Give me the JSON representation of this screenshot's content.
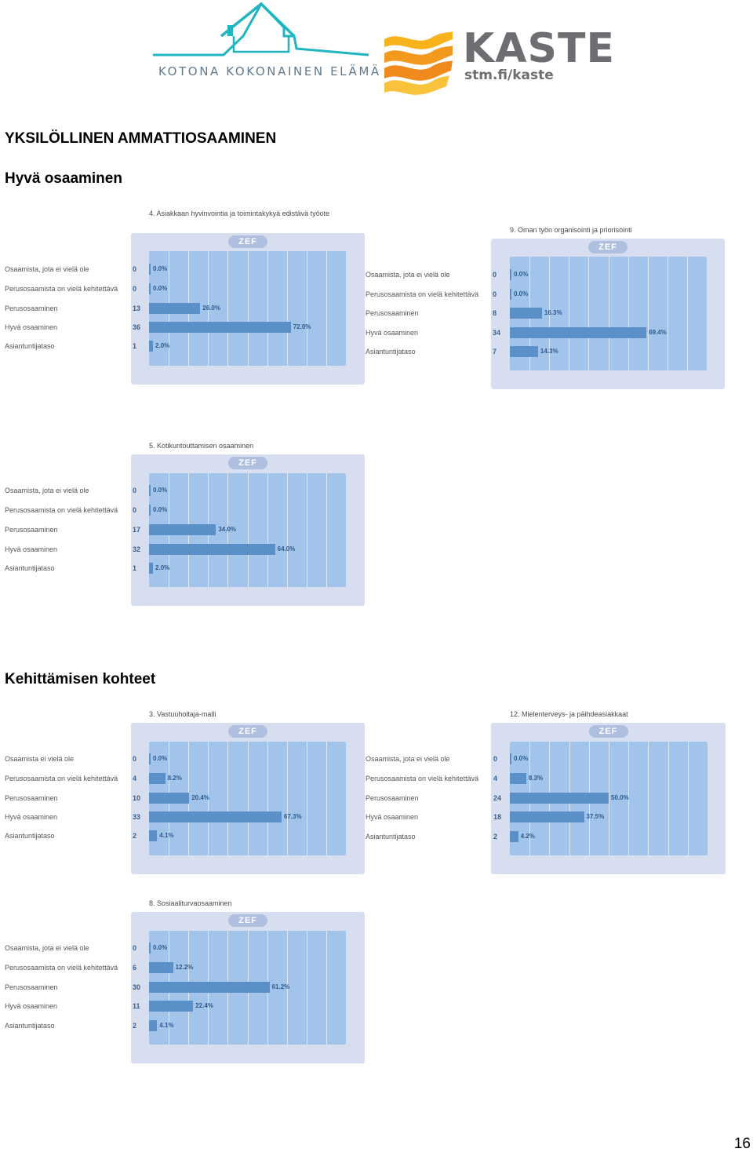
{
  "logos": {
    "kotona_tagline": "KOTONA KOKONAINEN ELÄMÄ",
    "kaste_word": "KASTE",
    "kaste_url": "stm.fi/kaste",
    "colors": {
      "house": "#1fb6c1",
      "kaste_wave": "#f5a623",
      "kaste_text": "#6d6e71"
    }
  },
  "heading_main": "YKSILÖLLINEN AMMATTIOSAAMINEN",
  "section_good": "Hyvä osaaminen",
  "section_dev": "Kehittämisen kohteet",
  "page_number": "16",
  "zef_label": "ZEF",
  "colors": {
    "panel": "#d6def0",
    "plot": "#a2c4ea",
    "bar": "#5b8fc7"
  },
  "chart_data": [
    {
      "type": "bar",
      "title": "4. Asiakkaan hyvinvointia ja toimintakykyä edistävä työote",
      "categories": [
        "Osaamista, jota ei vielä ole",
        "Perusosaamista on vielä kehitettävä",
        "Perusosaaminen",
        "Hyvä osaaminen",
        "Asiantuntijataso"
      ],
      "counts": [
        "0",
        "0",
        "13",
        "36",
        "1"
      ],
      "values": [
        0.0,
        0.0,
        26.0,
        72.0,
        2.0
      ],
      "labels": [
        "0.0%",
        "0.0%",
        "26.0%",
        "72.0%",
        "2.0%"
      ],
      "xlim": [
        0,
        100
      ]
    },
    {
      "type": "bar",
      "title": "9. Oman työn organisointi ja priorisointi",
      "categories": [
        "Osaamista, jota ei vielä ole",
        "Perusosaamista on vielä kehitettävä",
        "Perusosaaminen",
        "Hyvä osaaminen",
        "Asiantuntijataso"
      ],
      "counts": [
        "0",
        "0",
        "8",
        "34",
        "7"
      ],
      "values": [
        0.0,
        0.0,
        16.3,
        69.4,
        14.3
      ],
      "labels": [
        "0.0%",
        "0.0%",
        "16.3%",
        "69.4%",
        "14.3%"
      ],
      "xlim": [
        0,
        100
      ]
    },
    {
      "type": "bar",
      "title": "5. Kotikuntouttamisen osaaminen",
      "categories": [
        "Osaamista, jota ei vielä ole",
        "Perusosaamista on vielä kehitettävä",
        "Perusosaaminen",
        "Hyvä osaaminen",
        "Asiantuntijataso"
      ],
      "counts": [
        "0",
        "0",
        "17",
        "32",
        "1"
      ],
      "values": [
        0.0,
        0.0,
        34.0,
        64.0,
        2.0
      ],
      "labels": [
        "0.0%",
        "0.0%",
        "34.0%",
        "64.0%",
        "2.0%"
      ],
      "xlim": [
        0,
        100
      ]
    },
    {
      "type": "bar",
      "title": "3. Vastuuhoitaja-malli",
      "categories": [
        "Osaamista ei vielä ole",
        "Perusosaamista on vielä kehitettävä",
        "Perusosaaminen",
        "Hyvä osaaminen",
        "Asiantuntijataso"
      ],
      "counts": [
        "0",
        "4",
        "10",
        "33",
        "2"
      ],
      "values": [
        0.0,
        8.2,
        20.4,
        67.3,
        4.1
      ],
      "labels": [
        "0.0%",
        "8.2%",
        "20.4%",
        "67.3%",
        "4.1%"
      ],
      "xlim": [
        0,
        100
      ]
    },
    {
      "type": "bar",
      "title": "12. Mielenterveys- ja päihdeasiakkaat",
      "categories": [
        "Osaamista, jota ei vielä ole",
        "Perusosaamista on vielä kehitettävä",
        "Perusosaaminen",
        "Hyvä osaaminen",
        "Asiantuntijataso"
      ],
      "counts": [
        "0",
        "4",
        "24",
        "18",
        "2"
      ],
      "values": [
        0.0,
        8.3,
        50.0,
        37.5,
        4.2
      ],
      "labels": [
        "0.0%",
        "8.3%",
        "50.0%",
        "37.5%",
        "4.2%"
      ],
      "xlim": [
        0,
        100
      ]
    },
    {
      "type": "bar",
      "title": "8. Sosiaaliturvaosaaminen",
      "categories": [
        "Osaamista, jota ei vielä ole",
        "Perusosaamista on vielä kehitettävä",
        "Perusosaaminen",
        "Hyvä osaaminen",
        "Asiantuntijataso"
      ],
      "counts": [
        "0",
        "6",
        "30",
        "11",
        "2"
      ],
      "values": [
        0.0,
        12.2,
        61.2,
        22.4,
        4.1
      ],
      "labels": [
        "0.0%",
        "12.2%",
        "61.2%",
        "22.4%",
        "4.1%"
      ],
      "xlim": [
        0,
        100
      ]
    }
  ]
}
